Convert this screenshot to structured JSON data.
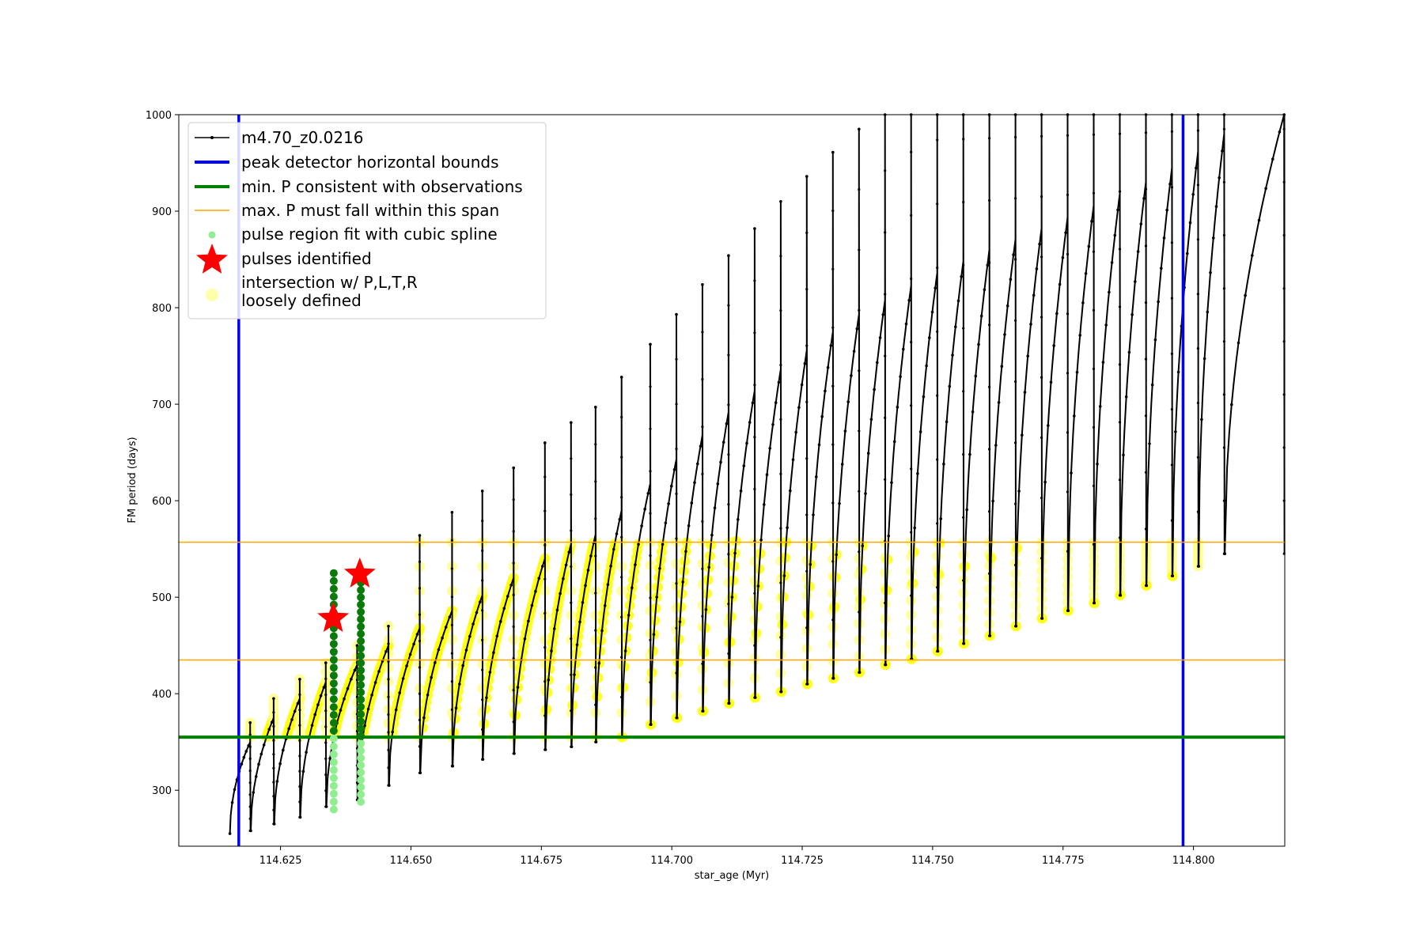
{
  "chart_data": {
    "type": "line",
    "xlabel": "star_age (Myr)",
    "ylabel": "FM period (days)",
    "xlim": [
      114.6055,
      114.8175
    ],
    "ylim": [
      242,
      1000
    ],
    "xticks": [
      "114.625",
      "114.650",
      "114.675",
      "114.700",
      "114.725",
      "114.750",
      "114.775",
      "114.800"
    ],
    "yticks": [
      "300",
      "400",
      "500",
      "600",
      "700",
      "800",
      "900",
      "1000"
    ],
    "grid": false,
    "legend_position": "upper-left",
    "vertical_bounds": [
      114.617,
      114.798
    ],
    "min_period_line": 355,
    "max_period_span": [
      435,
      557
    ],
    "pulses_identified": [
      {
        "x": 114.6351,
        "y": 478
      },
      {
        "x": 114.6402,
        "y": 524
      }
    ],
    "pulse_regions": [
      {
        "x": 114.6352,
        "y_min": 280,
        "y_max": 525
      },
      {
        "x": 114.6404,
        "y_min": 288,
        "y_max": 515
      }
    ],
    "series": [
      {
        "name": "m4.70_z0.0216",
        "color": "#000000",
        "style": "line-with-points",
        "cycle_starts": [
          114.6153,
          114.6193,
          114.6238,
          114.6288,
          114.6338,
          114.6398,
          114.6458,
          114.6518,
          114.658,
          114.6638,
          114.6698,
          114.6758,
          114.6808,
          114.6855,
          114.6905,
          114.696,
          114.701,
          114.706,
          114.711,
          114.716,
          114.721,
          114.726,
          114.731,
          114.736,
          114.741,
          114.746,
          114.751,
          114.756,
          114.761,
          114.766,
          114.771,
          114.776,
          114.781,
          114.786,
          114.791,
          114.796,
          114.801,
          114.806
        ],
        "cycle_peaks": [
          350,
          375,
          395,
          412,
          430,
          450,
          468,
          486,
          502,
          520,
          540,
          555,
          565,
          590,
          618,
          643,
          668,
          692,
          714,
          736,
          756,
          775,
          793,
          808,
          823,
          836,
          848,
          860,
          871,
          882,
          894,
          906,
          918,
          930,
          945,
          962,
          980,
          1000
        ],
        "cycle_minima": [
          255,
          258,
          265,
          272,
          283,
          290,
          305,
          318,
          325,
          332,
          338,
          342,
          345,
          350,
          355,
          368,
          375,
          382,
          390,
          396,
          402,
          410,
          416,
          422,
          430,
          436,
          444,
          452,
          460,
          470,
          478,
          486,
          494,
          502,
          512,
          522,
          532,
          545
        ]
      },
      {
        "name": "peak detector horizontal bounds",
        "color": "#0000ff",
        "x": [
          114.617,
          114.798
        ]
      },
      {
        "name": "min. P consistent with observations",
        "color": "#008000",
        "y": 355
      },
      {
        "name": "max. P must fall within this span",
        "color": "#ffa500",
        "y": [
          435,
          557
        ]
      },
      {
        "name": "pulse region fit with cubic spline",
        "color": "#90ee90"
      },
      {
        "name": "pulses identified",
        "color": "#ff0000"
      },
      {
        "name": "intersection w/ P,L,T,R\nloosely defined",
        "color": "#ffff00"
      }
    ]
  },
  "legend": {
    "items": [
      {
        "label": "m4.70_z0.0216",
        "color": "#000000",
        "kind": "line-marker"
      },
      {
        "label": "peak detector horizontal bounds",
        "color": "#0000ff",
        "kind": "thick-line"
      },
      {
        "label": "min. P consistent with observations",
        "color": "#008000",
        "kind": "thick-line"
      },
      {
        "label": "max. P must fall within this span",
        "color": "#ffa500",
        "kind": "thin-line"
      },
      {
        "label": "pulse region fit with cubic spline",
        "color": "#90ee90",
        "kind": "dot"
      },
      {
        "label": "pulses identified",
        "color": "#ff0000",
        "kind": "star"
      },
      {
        "label": "intersection w/ P,L,T,R",
        "label2": "loosely defined",
        "color": "#ffffaa",
        "kind": "big-dot"
      }
    ]
  }
}
